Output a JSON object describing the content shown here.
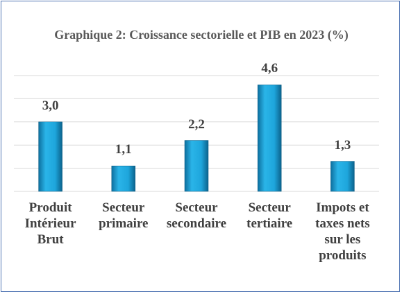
{
  "chart_data": {
    "type": "bar",
    "title": "Graphique 2: Croissance sectorielle et PIB en 2023 (%)",
    "categories": [
      "Produit Intérieur Brut",
      "Secteur primaire",
      "Secteur secondaire",
      "Secteur tertiaire",
      "Impots et taxes nets sur les produits"
    ],
    "values": [
      3.0,
      1.1,
      2.2,
      4.6,
      1.3
    ],
    "value_labels": [
      "3,0",
      "1,1",
      "2,2",
      "4,6",
      "1,3"
    ],
    "color": "#1ea6dc",
    "ylim": [
      0,
      5
    ],
    "yticks": [
      0,
      1,
      2,
      3,
      4,
      5
    ],
    "grid": true
  }
}
